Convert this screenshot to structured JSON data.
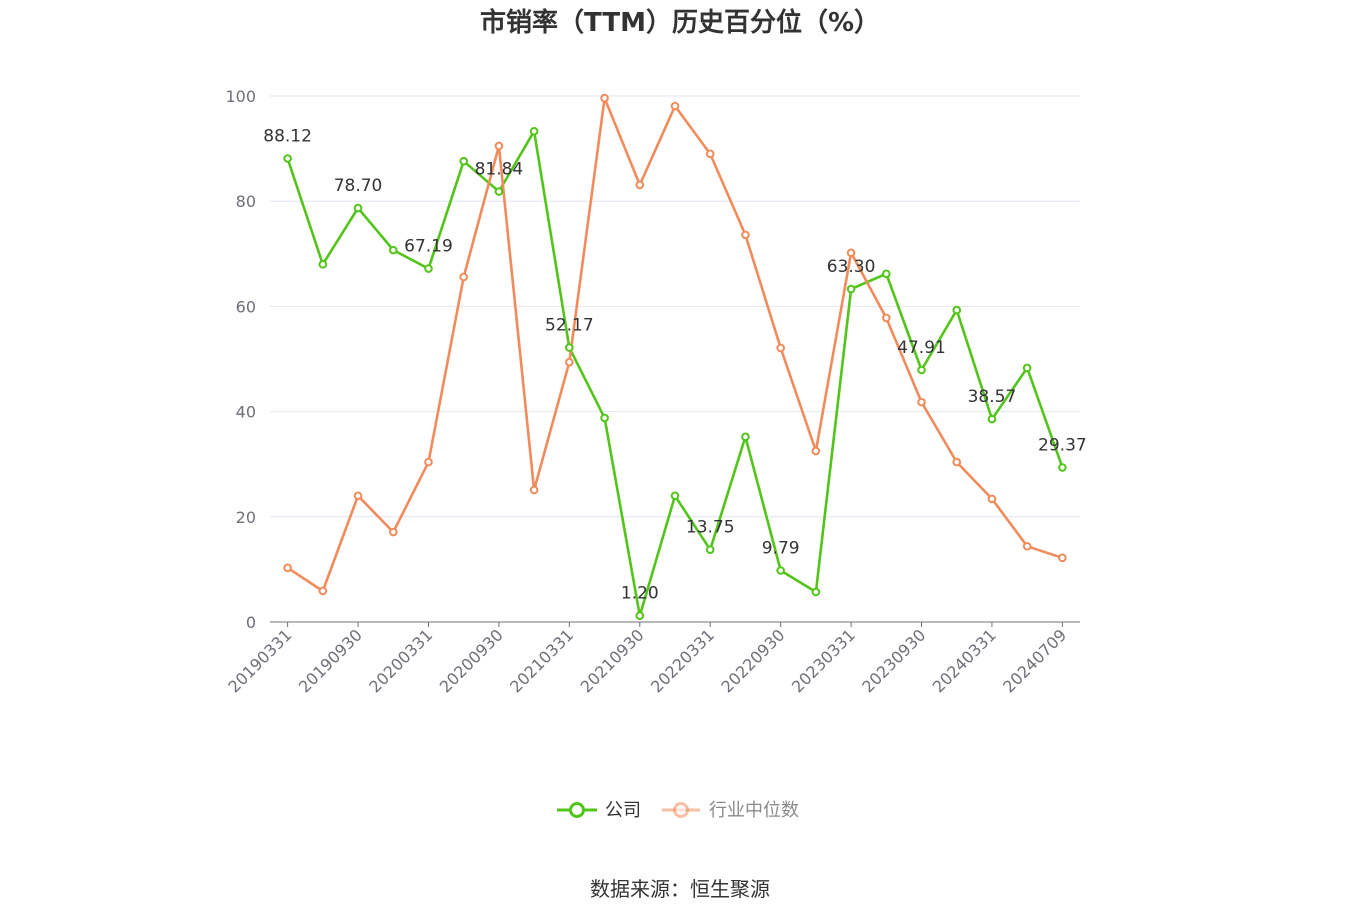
{
  "chart_data": {
    "type": "line",
    "title": "市销率（TTM）历史百分位（%）",
    "categories": [
      "20190331",
      "",
      "20190930",
      "",
      "20200331",
      "",
      "20200930",
      "",
      "20210331",
      "",
      "20210930",
      "",
      "20220331",
      "",
      "20220930",
      "",
      "20230331",
      "",
      "20230930",
      "",
      "20240331",
      "",
      "20240709"
    ],
    "ylim": [
      0,
      100
    ],
    "yticks": [
      0,
      20,
      40,
      60,
      80,
      100
    ],
    "grid": true,
    "legend_position": "bottom",
    "series": [
      {
        "name": "公司",
        "color": "#52c41a",
        "values": [
          88.12,
          68.0,
          78.7,
          70.7,
          67.19,
          87.6,
          81.84,
          93.3,
          52.17,
          38.8,
          1.2,
          24.0,
          13.75,
          35.2,
          9.79,
          5.7,
          63.3,
          66.2,
          47.91,
          59.3,
          38.57,
          48.3,
          29.37
        ],
        "data_labels": [
          "88.12",
          null,
          "78.70",
          null,
          "67.19",
          null,
          "81.84",
          null,
          "52.17",
          null,
          "1.20",
          null,
          "13.75",
          null,
          "9.79",
          null,
          "63.30",
          null,
          "47.91",
          null,
          "38.57",
          null,
          "29.37"
        ]
      },
      {
        "name": "行业中位数",
        "color": "#f28b5b",
        "values": [
          10.3,
          5.9,
          24.0,
          17.1,
          30.4,
          65.6,
          90.5,
          25.1,
          49.4,
          99.6,
          83.1,
          98.1,
          89.0,
          73.6,
          52.1,
          32.5,
          70.2,
          57.8,
          41.8,
          30.4,
          23.4,
          14.4,
          12.2
        ]
      }
    ]
  },
  "source": "数据来源：恒生聚源"
}
